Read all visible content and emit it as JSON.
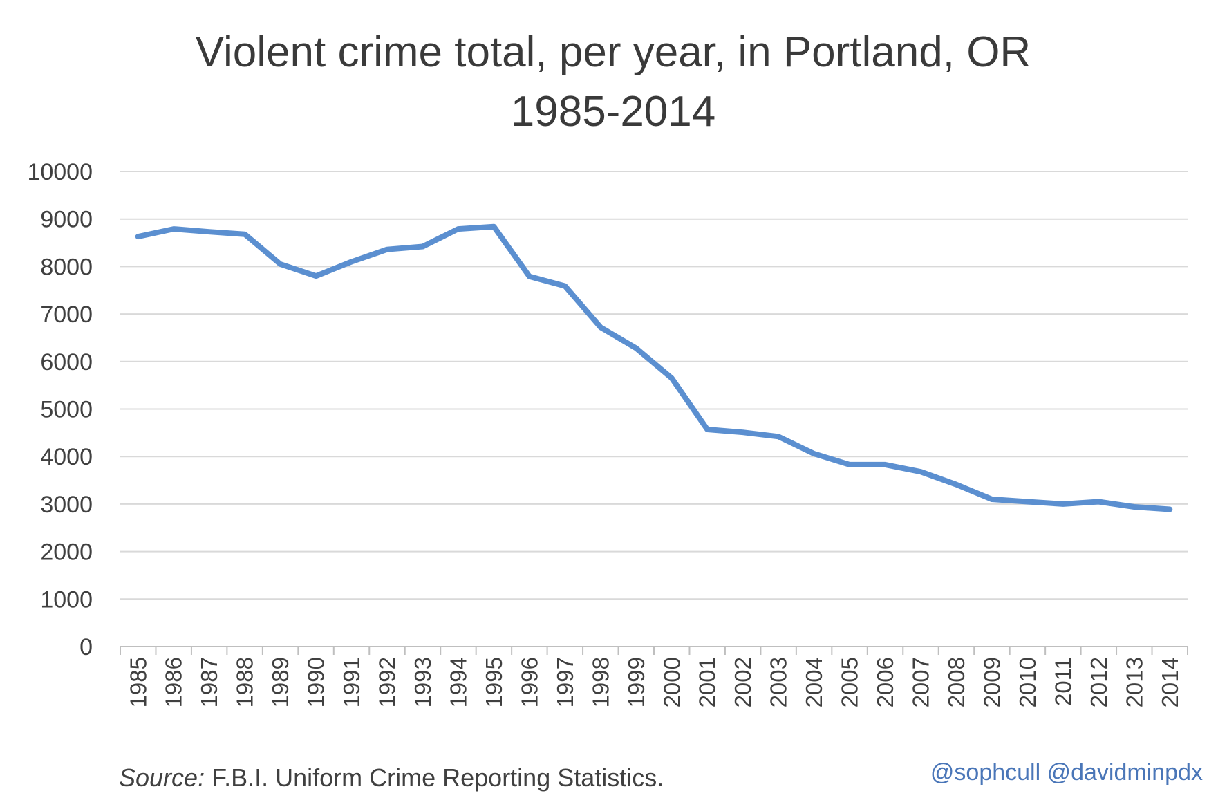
{
  "chart_data": {
    "type": "line",
    "title": "Violent crime total, per year, in Portland, OR",
    "subtitle": "1985-2014",
    "xlabel": "",
    "ylabel": "",
    "ylim": [
      0,
      10000
    ],
    "yticks": [
      "0",
      "1000",
      "2000",
      "3000",
      "4000",
      "5000",
      "6000",
      "7000",
      "8000",
      "9000",
      "10000"
    ],
    "grid": true,
    "legend": "none",
    "line_color": "#5b8fd0",
    "categories": [
      "1985",
      "1986",
      "1987",
      "1988",
      "1989",
      "1990",
      "1991",
      "1992",
      "1993",
      "1994",
      "1995",
      "1996",
      "1997",
      "1998",
      "1999",
      "2000",
      "2001",
      "2002",
      "2003",
      "2004",
      "2005",
      "2006",
      "2007",
      "2008",
      "2009",
      "2010",
      "2011",
      "2012",
      "2013",
      "2014"
    ],
    "series": [
      {
        "values": [
          8630,
          8790,
          8730,
          8680,
          8050,
          7800,
          8100,
          8360,
          8420,
          8790,
          8840,
          7790,
          7590,
          6720,
          6280,
          5650,
          4570,
          4510,
          4420,
          4060,
          3830,
          3830,
          3680,
          3410,
          3100,
          3050,
          3000,
          3050,
          2940,
          2890
        ]
      }
    ]
  },
  "footer": {
    "source_label": "Source:",
    "source_text": "F.B.I. Uniform Crime Reporting Statistics.",
    "credit": "@sophcull @davidminpdx"
  }
}
